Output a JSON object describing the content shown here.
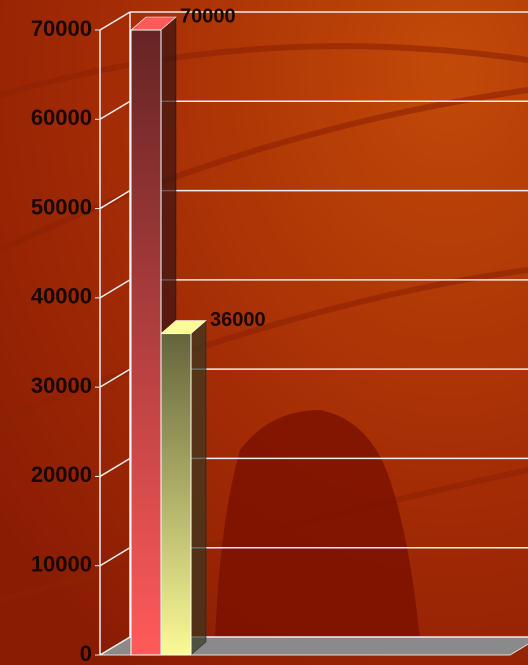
{
  "chart_data": {
    "type": "bar",
    "categories": [
      null
    ],
    "series": [
      {
        "color": "#ff5a5a",
        "values": [
          70000
        ]
      },
      {
        "color": "#fafa96",
        "values": [
          36000
        ]
      }
    ],
    "ylim": [
      0,
      70000
    ],
    "yticks": [
      0,
      10000,
      20000,
      30000,
      40000,
      50000,
      60000,
      70000
    ],
    "grid": true,
    "data_labels": true
  }
}
